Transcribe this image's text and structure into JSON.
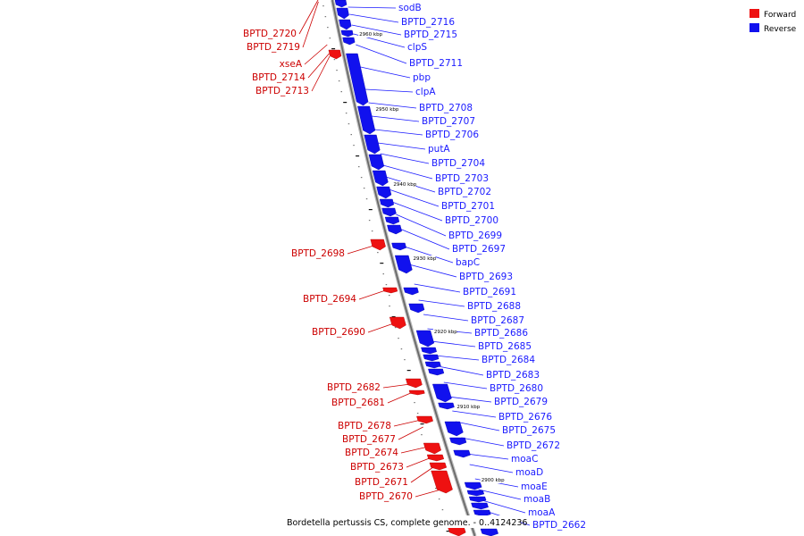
{
  "colors": {
    "forward": "#ee1111",
    "reverse": "#1111ee",
    "backbone": "#888888",
    "label_forward": "#cc0000",
    "label_reverse": "#1a1aff"
  },
  "legend": {
    "forward": "Forward",
    "reverse": "Reverse"
  },
  "caption": "Bordetella pertussis CS, complete genome. - 0..4124236",
  "ruler": [
    "2960 kbp",
    "2950 kbp",
    "2940 kbp",
    "2930 kbp",
    "2920 kbp",
    "2910 kbp",
    "2900 kbp"
  ],
  "genes_reverse": [
    "sodB",
    "BPTD_2716",
    "BPTD_2715",
    "clpS",
    "BPTD_2711",
    "pbp",
    "clpA",
    "BPTD_2708",
    "BPTD_2707",
    "BPTD_2706",
    "putA",
    "BPTD_2704",
    "BPTD_2703",
    "BPTD_2702",
    "BPTD_2701",
    "BPTD_2700",
    "BPTD_2699",
    "BPTD_2697",
    "bapC",
    "BPTD_2693",
    "BPTD_2691",
    "BPTD_2688",
    "BPTD_2687",
    "BPTD_2686",
    "BPTD_2685",
    "BPTD_2684",
    "BPTD_2683",
    "BPTD_2680",
    "BPTD_2679",
    "BPTD_2676",
    "BPTD_2675",
    "BPTD_2672",
    "moaC",
    "moaD",
    "moaE",
    "moaB",
    "moaA",
    "BPTD_2662"
  ],
  "genes_forward": [
    "BPTD_2720",
    "BPTD_2719",
    "xseA",
    "BPTD_2714",
    "BPTD_2713",
    "BPTD_2698",
    "BPTD_2694",
    "BPTD_2690",
    "BPTD_2682",
    "BPTD_2681",
    "BPTD_2678",
    "BPTD_2677",
    "BPTD_2674",
    "BPTD_2673",
    "BPTD_2671",
    "BPTD_2670"
  ]
}
